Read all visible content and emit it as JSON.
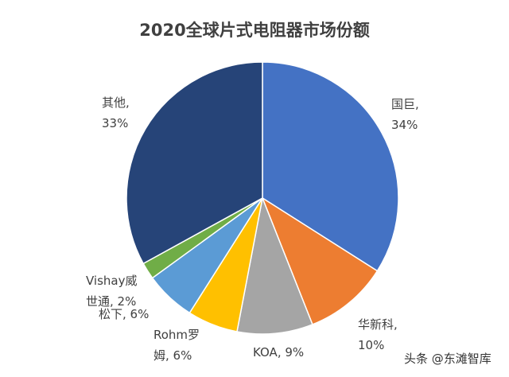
{
  "chart_data": {
    "type": "pie",
    "title": "2020全球片式电阻器市场份额",
    "start": "12 o'clock, clockwise",
    "slices": [
      {
        "name": "国巨",
        "value": 34,
        "label1": "国巨,",
        "label2": "34%",
        "color": "#4472C4"
      },
      {
        "name": "华新科",
        "value": 10,
        "label1": "华新科,",
        "label2": "10%",
        "color": "#ED7D31"
      },
      {
        "name": "KOA",
        "value": 9,
        "label1": "KOA, 9%",
        "label2": "",
        "color": "#A5A5A5"
      },
      {
        "name": "Rohm罗姆",
        "value": 6,
        "label1": "Rohm罗",
        "label2": "姆, 6%",
        "color": "#FFC000"
      },
      {
        "name": "松下",
        "value": 6,
        "label1": "松下, 6%",
        "label2": "",
        "color": "#5B9BD5"
      },
      {
        "name": "Vishay威世通",
        "value": 2,
        "label1": "Vishay威",
        "label2": "世通, 2%",
        "color": "#70AD47"
      },
      {
        "name": "其他",
        "value": 33,
        "label1": "其他,",
        "label2": "33%",
        "color": "#264478"
      }
    ]
  },
  "watermark": "头条 @东滩智库"
}
